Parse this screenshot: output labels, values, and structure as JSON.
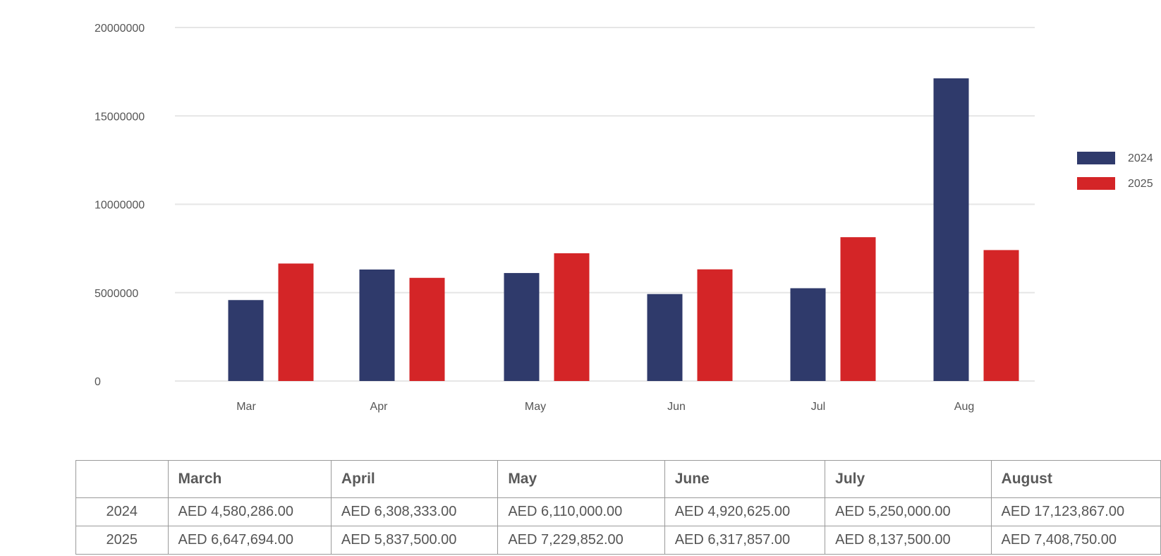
{
  "chart_data": {
    "type": "bar",
    "categories": [
      "Mar",
      "Apr",
      "May",
      "Jun",
      "Jul",
      "Aug"
    ],
    "series": [
      {
        "name": "2024",
        "color": "#2f3a6b",
        "values": [
          4580286,
          6308333,
          6110000,
          4920625,
          5250000,
          17123867
        ]
      },
      {
        "name": "2025",
        "color": "#d42527",
        "values": [
          6647694,
          5837500,
          7229852,
          6317857,
          8137500,
          7408750
        ]
      }
    ],
    "y_ticks": [
      "0",
      "5000000",
      "10000000",
      "15000000",
      "20000000"
    ],
    "ylim": [
      0,
      20000000
    ],
    "grid": true,
    "legend_position": "right"
  },
  "table": {
    "columns": [
      "",
      "March",
      "April",
      "May",
      "June",
      "July",
      "August"
    ],
    "rows": [
      {
        "year": "2024",
        "values": [
          "AED 4,580,286.00",
          "AED 6,308,333.00",
          "AED 6,110,000.00",
          "AED 4,920,625.00",
          "AED 5,250,000.00",
          "AED 17,123,867.00"
        ]
      },
      {
        "year": "2025",
        "values": [
          "AED 6,647,694.00",
          "AED 5,837,500.00",
          "AED 7,229,852.00",
          "AED 6,317,857.00",
          "AED 8,137,500.00",
          "AED 7,408,750.00"
        ]
      }
    ]
  }
}
